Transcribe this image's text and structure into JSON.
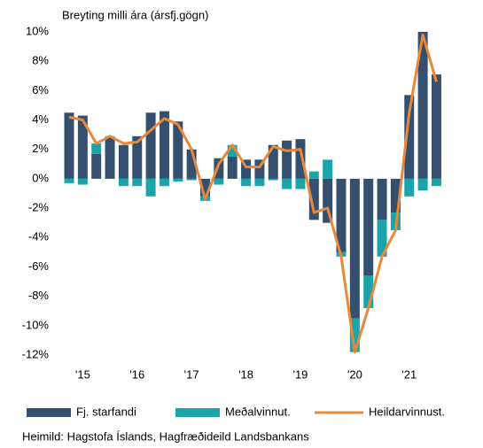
{
  "chart_data": {
    "type": "bar",
    "title": "Breyting milli ára (ársfj.gögn)",
    "source": "Heimild: Hagstofa Íslands, Hagfræðideild Landsbankans",
    "categories": [
      null,
      "'15",
      null,
      null,
      null,
      "'16",
      null,
      null,
      null,
      "'17",
      null,
      null,
      null,
      "'18",
      null,
      null,
      null,
      "'19",
      null,
      null,
      null,
      "'20",
      null,
      null,
      null,
      "'21",
      null,
      null
    ],
    "series": [
      {
        "name": "Fj. starfandi",
        "type": "bar",
        "color": "#34506e",
        "values": [
          4.5,
          4.3,
          1.7,
          2.8,
          2.3,
          2.9,
          4.5,
          4.6,
          3.9,
          2.0,
          -1.2,
          1.4,
          1.5,
          1.3,
          1.3,
          2.3,
          2.6,
          2.7,
          -2.8,
          -3.0,
          -5.0,
          -9.5,
          -6.6,
          -2.8,
          -2.3,
          5.7,
          10.0,
          7.1
        ]
      },
      {
        "name": "Meðalvinnut.",
        "type": "bar",
        "color": "#1ba5aa",
        "values": [
          -0.3,
          -0.4,
          0.7,
          0.1,
          -0.5,
          -0.5,
          -1.2,
          -0.5,
          -0.2,
          -0.1,
          -0.3,
          -0.4,
          0.8,
          -0.5,
          -0.5,
          -0.1,
          -0.7,
          -0.7,
          0.5,
          1.3,
          -0.3,
          -2.3,
          -2.2,
          -2.5,
          -1.2,
          -1.2,
          -0.8,
          -0.5
        ]
      },
      {
        "name": "Heildarvinnust.",
        "type": "line",
        "color": "#e8883a",
        "values": [
          4.2,
          4.0,
          2.4,
          2.9,
          2.4,
          2.5,
          3.3,
          4.1,
          3.7,
          2.0,
          -1.4,
          1.0,
          2.3,
          0.8,
          0.8,
          2.2,
          1.9,
          2.0,
          -2.3,
          -2.0,
          -5.3,
          -11.8,
          -8.8,
          -5.3,
          -3.5,
          4.5,
          9.8,
          6.6
        ]
      }
    ],
    "ylim": [
      -12,
      10
    ],
    "yticks": [
      {
        "value": 10,
        "label": "10%"
      },
      {
        "value": 8,
        "label": "8%"
      },
      {
        "value": 6,
        "label": "6%"
      },
      {
        "value": 4,
        "label": "4%"
      },
      {
        "value": 2,
        "label": "2%"
      },
      {
        "value": 0,
        "label": "0%"
      },
      {
        "value": -2,
        "label": "-2%"
      },
      {
        "value": -4,
        "label": "-4%"
      },
      {
        "value": -6,
        "label": "-6%"
      },
      {
        "value": -8,
        "label": "-8%"
      },
      {
        "value": -10,
        "label": "-10%"
      },
      {
        "value": -12,
        "label": "-12%"
      }
    ],
    "grid": false,
    "legend": "bottom"
  }
}
